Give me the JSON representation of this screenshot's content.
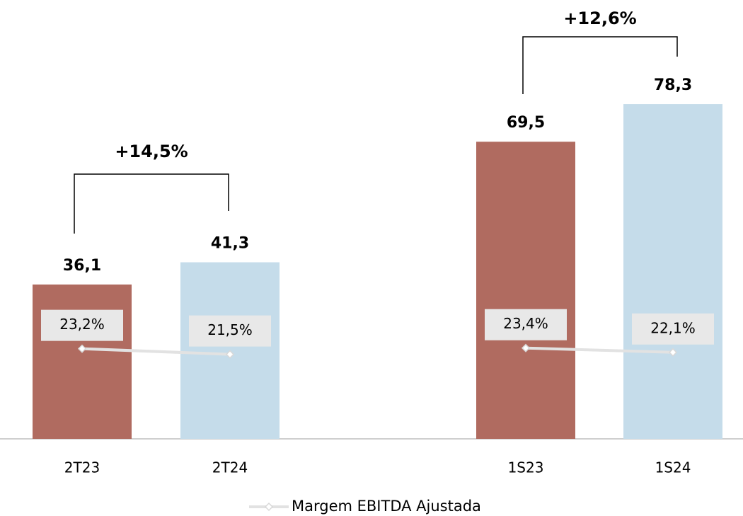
{
  "chart_data": {
    "type": "bar",
    "categories": [
      "2T23",
      "2T24",
      "1S23",
      "1S24"
    ],
    "series": [
      {
        "type": "bar",
        "values": [
          36.1,
          41.3,
          69.5,
          78.3
        ],
        "value_labels": [
          "36,1",
          "41,3",
          "69,5",
          "78,3"
        ],
        "colors": [
          "#b06b60",
          "#c5dcea",
          "#b06b60",
          "#c5dcea"
        ]
      },
      {
        "name": "Margem EBITDA Ajustada",
        "type": "line",
        "axis": "y2",
        "color": "#e2e2e2",
        "values": [
          23.2,
          21.5,
          23.4,
          22.1
        ],
        "value_labels": [
          "23,2%",
          "21,5%",
          "23,4%",
          "22,1%"
        ]
      }
    ],
    "annotations": [
      {
        "text": "+14,5%"
      },
      {
        "text": "+12,6%"
      }
    ],
    "ylim": [
      0,
      100
    ],
    "y2lim": [
      -4,
      125
    ],
    "legend": "bottom"
  }
}
